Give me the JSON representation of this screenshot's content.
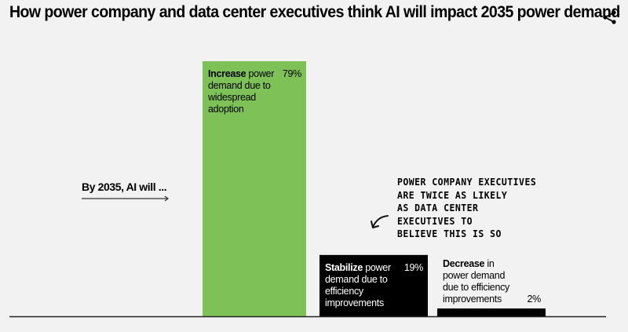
{
  "chart_data": {
    "type": "bar",
    "title": "How power company and data center executives think AI will impact 2035 power demand",
    "xlabel": "",
    "ylabel": "",
    "ylim": [
      0,
      80
    ],
    "grid": false,
    "intro_label": "By 2035, AI will ...",
    "categories": [
      "Increase",
      "Stabilize",
      "Decrease"
    ],
    "values": [
      79,
      19,
      2
    ],
    "value_labels": [
      "79%",
      "19%",
      "2%"
    ],
    "bars": [
      {
        "bold": "Increase",
        "rest": [
          " power",
          "demand due to",
          "widespread",
          "adoption"
        ],
        "color": "#7dc157",
        "text_color": "#000000"
      },
      {
        "bold": "Stabilize",
        "rest": [
          " power",
          "demand due to",
          "efficiency",
          "improvements"
        ],
        "color": "#000000",
        "text_color": "#ffffff"
      },
      {
        "bold": "Decrease",
        "rest": [
          " in",
          "power demand",
          "due to efficiency",
          "improvements"
        ],
        "color": "#000000",
        "text_color": "#000000"
      }
    ],
    "annotation": {
      "lines": [
        "Power company executives",
        "are twice as likely",
        "as data center",
        "executives to",
        "believe this is so"
      ],
      "points_to": "Stabilize"
    }
  },
  "share_icon": "share-icon"
}
